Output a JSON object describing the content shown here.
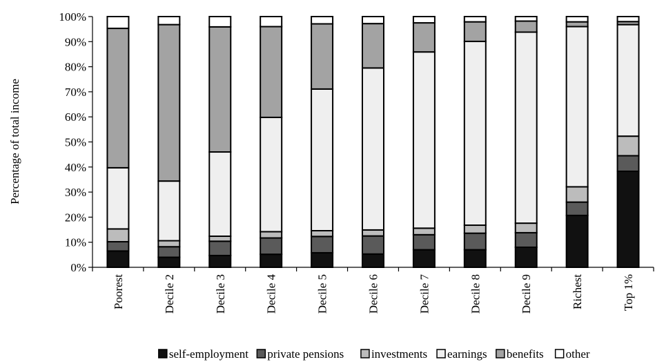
{
  "chart_data": {
    "type": "bar",
    "stacked": true,
    "title": "",
    "xlabel": "",
    "ylabel": "Percentage of total income",
    "ylim": [
      0,
      100
    ],
    "yticks": [
      "0%",
      "10%",
      "20%",
      "30%",
      "40%",
      "50%",
      "60%",
      "70%",
      "80%",
      "90%",
      "100%"
    ],
    "grid": false,
    "legend_position": "bottom",
    "categories": [
      "Poorest",
      "Decile 2",
      "Decile 3",
      "Decile 4",
      "Decile 5",
      "Decile 6",
      "Decile 7",
      "Decile 8",
      "Decile 9",
      "Richest",
      "Top 1%"
    ],
    "series": [
      {
        "name": "self-employment",
        "color": "#111111",
        "values": [
          6.5,
          4.0,
          4.7,
          5.2,
          5.8,
          5.3,
          7.0,
          7.0,
          8.0,
          20.7,
          38.3
        ]
      },
      {
        "name": "private pensions",
        "color": "#5a5a5a",
        "values": [
          3.7,
          4.2,
          5.7,
          6.5,
          6.5,
          7.2,
          6.0,
          6.6,
          5.8,
          5.3,
          6.2
        ]
      },
      {
        "name": "investments",
        "color": "#bcbcbc",
        "values": [
          5.1,
          2.4,
          2.0,
          2.5,
          2.3,
          2.4,
          2.6,
          3.2,
          3.8,
          6.1,
          7.8
        ]
      },
      {
        "name": "earnings",
        "color": "#efefef",
        "values": [
          24.4,
          23.8,
          33.6,
          45.6,
          56.5,
          64.6,
          70.3,
          73.3,
          76.2,
          63.9,
          44.5
        ]
      },
      {
        "name": "benefits",
        "color": "#a3a3a3",
        "values": [
          55.6,
          62.4,
          49.9,
          36.2,
          26.0,
          17.7,
          11.6,
          7.8,
          4.4,
          1.9,
          1.2
        ]
      },
      {
        "name": "other",
        "color": "#ffffff",
        "values": [
          4.7,
          3.2,
          4.1,
          4.0,
          2.9,
          2.8,
          2.5,
          2.1,
          1.8,
          2.1,
          2.0
        ]
      }
    ]
  }
}
